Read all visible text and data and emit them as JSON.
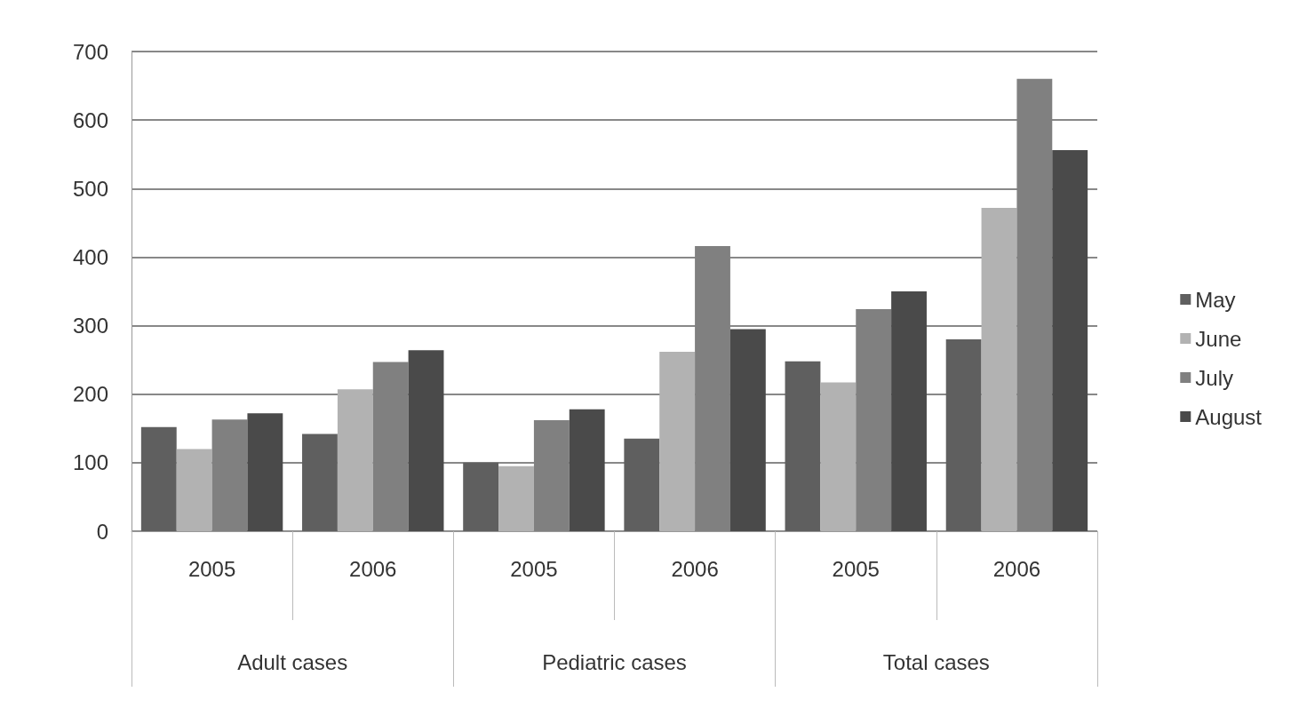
{
  "chart_data": {
    "type": "bar",
    "categories": [
      "2005",
      "2006",
      "2005",
      "2006",
      "2005",
      "2006"
    ],
    "annotations": [
      "Adult cases",
      "Pediatric cases",
      "Total cases"
    ],
    "series": [
      {
        "name": "May",
        "color": "#5f5f5f",
        "values": [
          152,
          142,
          100,
          135,
          248,
          280
        ]
      },
      {
        "name": "June",
        "color": "#b2b2b2",
        "values": [
          120,
          207,
          95,
          262,
          217,
          472
        ]
      },
      {
        "name": "July",
        "color": "#808080",
        "values": [
          163,
          247,
          162,
          416,
          324,
          660
        ]
      },
      {
        "name": "August",
        "color": "#4a4a4a",
        "values": [
          172,
          264,
          178,
          295,
          350,
          556
        ]
      }
    ],
    "ylim": [
      0,
      700
    ],
    "yticks": [
      0,
      100,
      200,
      300,
      400,
      500,
      600,
      700
    ],
    "grid": "y",
    "legend": "right"
  }
}
